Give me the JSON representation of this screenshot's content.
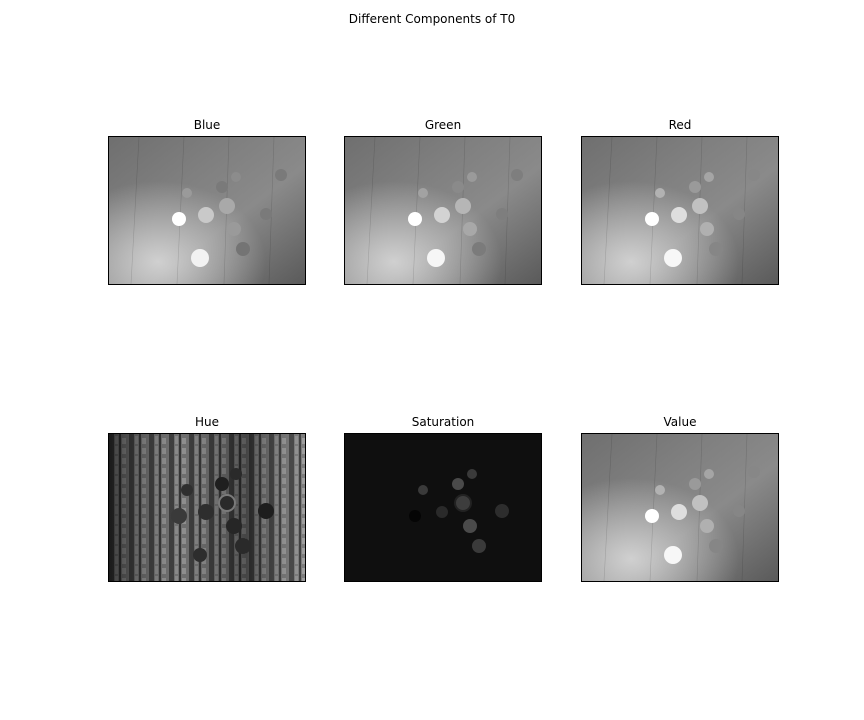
{
  "figure": {
    "title": "Different Components of T0"
  },
  "panels": [
    {
      "title": "Blue",
      "kind": "grayscale-photo",
      "colormap": "gray"
    },
    {
      "title": "Green",
      "kind": "grayscale-photo",
      "colormap": "gray"
    },
    {
      "title": "Red",
      "kind": "grayscale-photo",
      "colormap": "gray"
    },
    {
      "title": "Hue",
      "kind": "hue-noise",
      "colormap": "gray"
    },
    {
      "title": "Saturation",
      "kind": "dark-saturation",
      "colormap": "gray"
    },
    {
      "title": "Value",
      "kind": "grayscale-photo",
      "colormap": "gray"
    }
  ]
}
